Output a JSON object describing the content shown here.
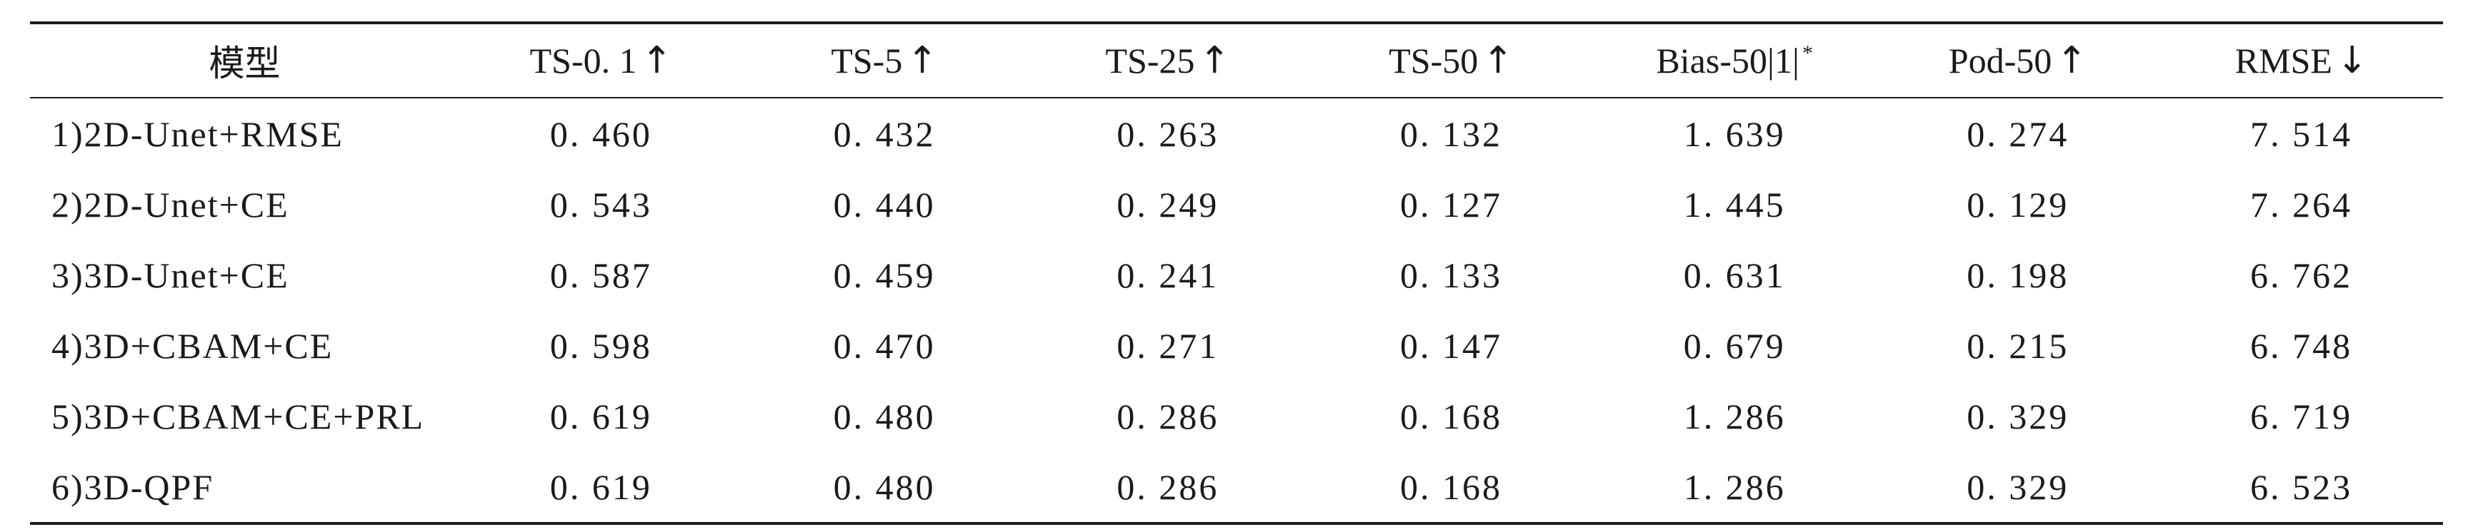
{
  "table": {
    "headers": [
      {
        "label": "模型",
        "arrow": ""
      },
      {
        "label": "TS-0. 1",
        "arrow": "↑"
      },
      {
        "label": "TS-5",
        "arrow": "↑"
      },
      {
        "label": "TS-25",
        "arrow": "↑"
      },
      {
        "label": "TS-50",
        "arrow": "↑"
      },
      {
        "label": "Bias-50|1|",
        "arrow": "",
        "note": "*"
      },
      {
        "label": "Pod-50",
        "arrow": "↑"
      },
      {
        "label": "RMSE",
        "arrow": "↓"
      }
    ],
    "rows": [
      [
        "1)2D-Unet+RMSE",
        "0. 460",
        "0. 432",
        "0. 263",
        "0. 132",
        "1. 639",
        "0. 274",
        "7. 514"
      ],
      [
        "2)2D-Unet+CE",
        "0. 543",
        "0. 440",
        "0. 249",
        "0. 127",
        "1. 445",
        "0. 129",
        "7. 264"
      ],
      [
        "3)3D-Unet+CE",
        "0. 587",
        "0. 459",
        "0. 241",
        "0. 133",
        "0. 631",
        "0. 198",
        "6. 762"
      ],
      [
        "4)3D+CBAM+CE",
        "0. 598",
        "0. 470",
        "0. 271",
        "0. 147",
        "0. 679",
        "0. 215",
        "6. 748"
      ],
      [
        "5)3D+CBAM+CE+PRL",
        "0. 619",
        "0. 480",
        "0. 286",
        "0. 168",
        "1. 286",
        "0. 329",
        "6. 719"
      ],
      [
        "6)3D-QPF",
        "0. 619",
        "0. 480",
        "0. 286",
        "0. 168",
        "1. 286",
        "0. 329",
        "6. 523"
      ]
    ]
  }
}
